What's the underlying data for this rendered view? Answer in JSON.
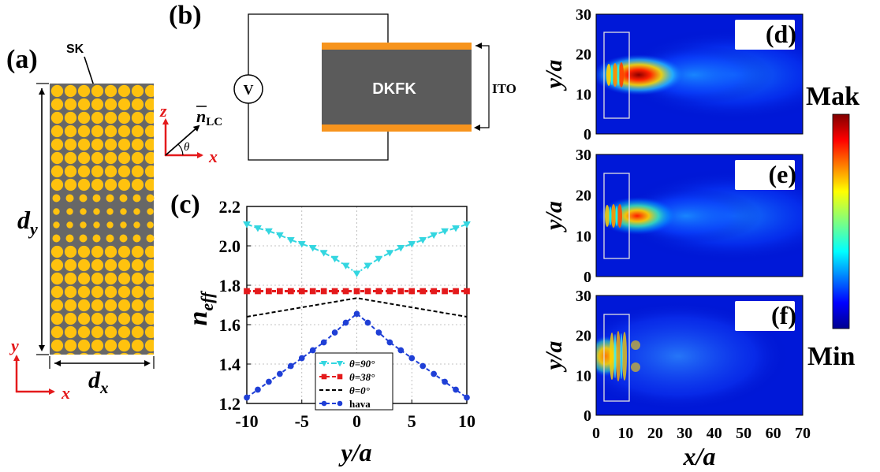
{
  "panels": {
    "a": {
      "label": "(a)",
      "sk_label": "SK",
      "dy_main": "d",
      "dy_sub": "y",
      "dx_main": "d",
      "dx_sub": "x",
      "axis_y": "y",
      "axis_x": "x",
      "rod_color": "#ffc20e",
      "bg_color": "#676767"
    },
    "b": {
      "label": "(b)",
      "source": "V",
      "cell_label": "DKFK",
      "electrode_label": "ITO",
      "director_main": "n",
      "director_sub": "LC",
      "axis_z": "z",
      "axis_x": "x",
      "angle": "θ",
      "electrode_color": "#f7941d",
      "cell_color": "#5b5b5b"
    },
    "c": {
      "label": "(c)",
      "ylabel_main": "n",
      "ylabel_sub": "eff",
      "xlabel": "y/a"
    },
    "maps": [
      {
        "id": "d",
        "label": "(d)",
        "ylabel": "y/a"
      },
      {
        "id": "e",
        "label": "(e)",
        "ylabel": "y/a"
      },
      {
        "id": "f",
        "label": "(f)",
        "ylabel": "y/a"
      }
    ],
    "map_xlabel": "x/a",
    "map_yticks": [
      "0",
      "10",
      "20",
      "30"
    ],
    "map_xticks": [
      "0",
      "10",
      "20",
      "30",
      "40",
      "50",
      "60",
      "70"
    ],
    "colorbar": {
      "max_label": "Mak",
      "min_label": "Min"
    }
  },
  "chart_data": {
    "type": "line",
    "xlabel": "y/a",
    "ylabel": "n_eff",
    "xlim": [
      -10,
      10
    ],
    "ylim": [
      1.2,
      2.2
    ],
    "xticks": [
      -10,
      -5,
      0,
      5,
      10
    ],
    "yticks": [
      1.2,
      1.4,
      1.6,
      1.8,
      2.0,
      2.2
    ],
    "grid": true,
    "legend_position": "bottom-center",
    "series": [
      {
        "name": "θ=90°",
        "color": "#33d6e0",
        "dash": "dashdot",
        "marker": "triangle-down",
        "x": [
          -10,
          -9,
          -8,
          -7,
          -6,
          -5,
          -4,
          -3,
          -2,
          -1,
          0,
          1,
          2,
          3,
          4,
          5,
          6,
          7,
          8,
          9,
          10
        ],
        "values": [
          2.11,
          2.09,
          2.075,
          2.055,
          2.03,
          2.01,
          1.99,
          1.965,
          1.935,
          1.9,
          1.86,
          1.9,
          1.935,
          1.965,
          1.99,
          2.01,
          2.03,
          2.055,
          2.075,
          2.09,
          2.11
        ]
      },
      {
        "name": "θ=38°",
        "color": "#e41a1c",
        "dash": "dash",
        "marker": "square",
        "x": [
          -10,
          -9,
          -8,
          -7,
          -6,
          -5,
          -4,
          -3,
          -2,
          -1,
          0,
          1,
          2,
          3,
          4,
          5,
          6,
          7,
          8,
          9,
          10
        ],
        "values": [
          1.77,
          1.77,
          1.77,
          1.77,
          1.77,
          1.77,
          1.77,
          1.77,
          1.77,
          1.77,
          1.77,
          1.77,
          1.77,
          1.77,
          1.77,
          1.77,
          1.77,
          1.77,
          1.77,
          1.77,
          1.77
        ]
      },
      {
        "name": "θ=0°",
        "color": "#000000",
        "dash": "dash",
        "marker": "none",
        "x": [
          -10,
          0,
          10
        ],
        "values": [
          1.64,
          1.735,
          1.64
        ]
      },
      {
        "name": "hava",
        "color": "#1f3fd6",
        "dash": "dash",
        "marker": "circle",
        "x": [
          -10,
          -9,
          -8,
          -7,
          -6,
          -5,
          -4,
          -3,
          -2,
          -1,
          0,
          1,
          2,
          3,
          4,
          5,
          6,
          7,
          8,
          9,
          10
        ],
        "values": [
          1.23,
          1.27,
          1.31,
          1.35,
          1.39,
          1.43,
          1.47,
          1.51,
          1.56,
          1.61,
          1.655,
          1.61,
          1.56,
          1.51,
          1.47,
          1.43,
          1.39,
          1.35,
          1.31,
          1.27,
          1.23
        ]
      }
    ]
  }
}
